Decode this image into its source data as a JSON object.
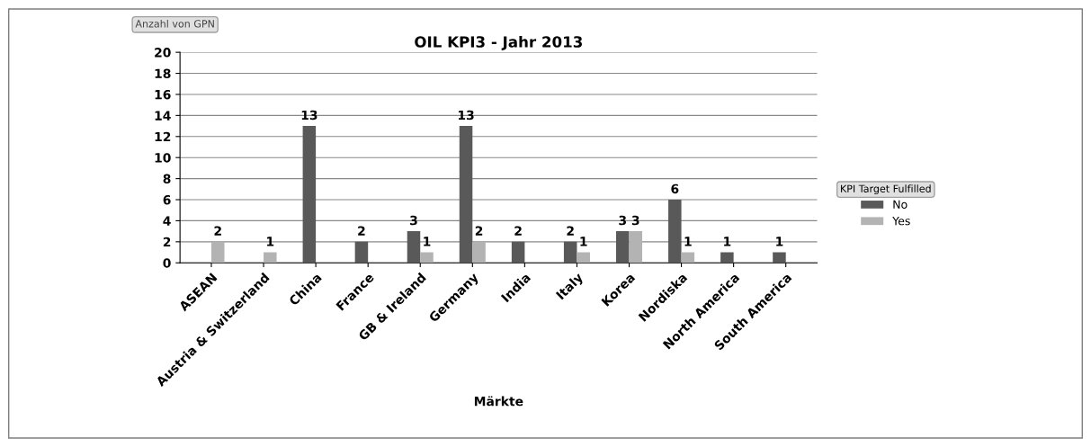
{
  "chart_data": {
    "type": "bar",
    "title": "OIL KPI3 - Jahr 2013",
    "ylabel": "Anzahl von GPN",
    "xlabel": "Märkte",
    "legend_title": "KPI Target Fulfilled",
    "categories": [
      "ASEAN",
      "Austria & Switzerland",
      "China",
      "France",
      "GB & Ireland",
      "Germany",
      "India",
      "Italy",
      "Korea",
      "Nordiska",
      "North America",
      "South America"
    ],
    "series": [
      {
        "name": "No",
        "color": "#595959",
        "values": [
          null,
          null,
          13,
          2,
          3,
          13,
          2,
          2,
          3,
          6,
          1,
          1
        ]
      },
      {
        "name": "Yes",
        "color": "#b3b3b3",
        "values": [
          2,
          1,
          null,
          null,
          1,
          2,
          null,
          1,
          3,
          1,
          null,
          null
        ]
      }
    ],
    "ylim": [
      0,
      20
    ],
    "yticks": [
      0,
      2,
      4,
      6,
      8,
      10,
      12,
      14,
      16,
      18,
      20
    ],
    "grid": "y",
    "legend": "right",
    "data_labels": true
  }
}
